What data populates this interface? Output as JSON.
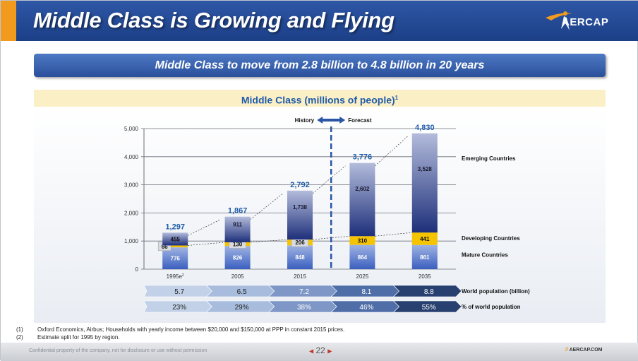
{
  "slide": {
    "title": "Middle Class is Growing and Flying",
    "subtitle": "Middle Class to move from 2.8 billion to 4.8 billion in 20 years",
    "logo_text": "AERCAP",
    "footnotes": [
      {
        "num": "(1)",
        "text": "Oxford Economics, Airbus; Households with yearly income between $20,000 and $150,000 at PPP in constant 2015 prices."
      },
      {
        "num": "(2)",
        "text": "Estimate split for 1995 by region."
      }
    ],
    "confidential": "Confidential property of the company, not for disclosure or use without permission",
    "page_number": "22",
    "website": "AERCAP.COM",
    "website_prefix": "//"
  },
  "chart_data": {
    "type": "bar",
    "title": "Middle Class (millions of people)",
    "title_sup": "1",
    "categories": [
      "1995e",
      "2005",
      "2015",
      "2025",
      "2035"
    ],
    "category_sup": [
      "2",
      "",
      "",
      "",
      ""
    ],
    "series": [
      {
        "name": "Mature Countries",
        "values": [
          776,
          826,
          848,
          864,
          861
        ],
        "color": "#4a6fc4"
      },
      {
        "name": "Developing Countries",
        "values": [
          66,
          130,
          206,
          310,
          441
        ],
        "color": "#f5c400"
      },
      {
        "name": "Emerging Countries",
        "values": [
          455,
          911,
          1738,
          2602,
          3528
        ],
        "color": "#2a3d8a"
      }
    ],
    "totals": [
      "1,297",
      "1,867",
      "2,792",
      "3,776",
      "4,830"
    ],
    "segment_labels": {
      "Mature Countries": [
        "776",
        "826",
        "848",
        "864",
        "861"
      ],
      "Developing Countries": [
        "66",
        "130",
        "206",
        "310",
        "441"
      ],
      "Emerging Countries": [
        "455",
        "911",
        "1,738",
        "2,602",
        "3,528"
      ]
    },
    "yticks": [
      "0",
      "1,000",
      "2,000",
      "3,000",
      "4,000",
      "5,000"
    ],
    "ylim": [
      0,
      5000
    ],
    "history_label": "History",
    "forecast_label": "Forecast",
    "rows": [
      {
        "label": "World population (billion)",
        "values": [
          "5.7",
          "6.5",
          "7.2",
          "8.1",
          "8.8"
        ]
      },
      {
        "label": "% of world population",
        "values": [
          "23%",
          "29%",
          "38%",
          "46%",
          "55%"
        ]
      }
    ],
    "row_colors": [
      "#c2d1e8",
      "#a8bddd",
      "#7e97c6",
      "#4f6ea8",
      "#27406f"
    ],
    "accent": "#1f5ca9"
  }
}
